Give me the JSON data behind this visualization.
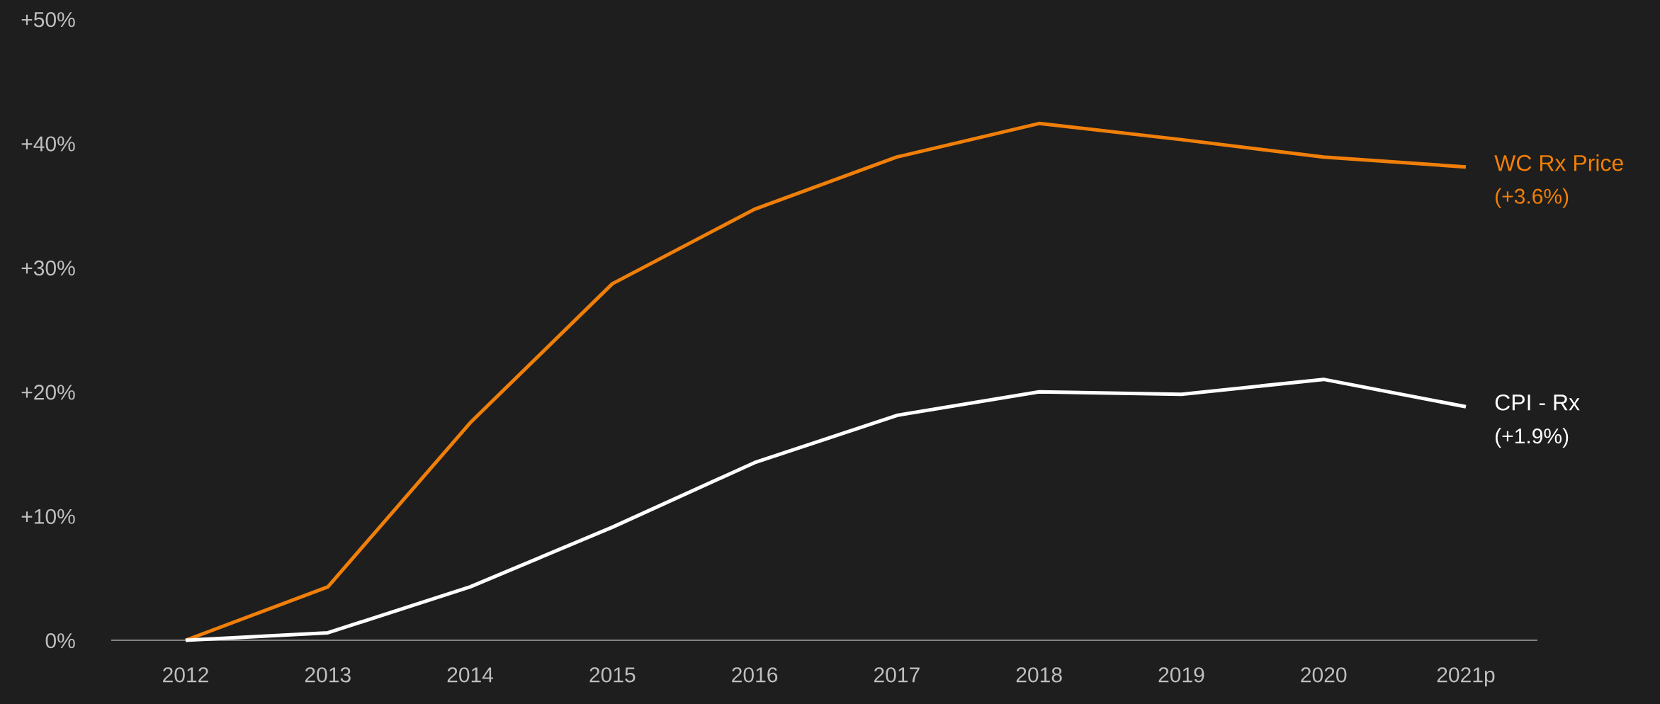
{
  "chart_data": {
    "type": "line",
    "categories": [
      "2012",
      "2013",
      "2014",
      "2015",
      "2016",
      "2017",
      "2018",
      "2019",
      "2020",
      "2021p"
    ],
    "series": [
      {
        "name": "WC Rx Price",
        "color": "#f07f09",
        "values": [
          0,
          4.3,
          17.5,
          28.7,
          34.7,
          38.9,
          41.6,
          40.3,
          38.9,
          38.1
        ]
      },
      {
        "name": "CPI - Rx",
        "color": "#ffffff",
        "values": [
          0,
          0.6,
          4.3,
          9.1,
          14.3,
          18.1,
          20.0,
          19.8,
          21.0,
          18.8
        ]
      }
    ],
    "annotations": [
      "(+3.6%)",
      "(+1.9%)"
    ],
    "ylim": [
      0,
      50
    ],
    "yticks": [
      {
        "value": 0,
        "label": "0%"
      },
      {
        "value": 10,
        "label": "+10%"
      },
      {
        "value": 20,
        "label": "+20%"
      },
      {
        "value": 30,
        "label": "+30%"
      },
      {
        "value": 40,
        "label": "+40%"
      },
      {
        "value": 50,
        "label": "+50%"
      }
    ],
    "grid": false,
    "legend": false,
    "marker": "none",
    "line_style": "solid"
  }
}
